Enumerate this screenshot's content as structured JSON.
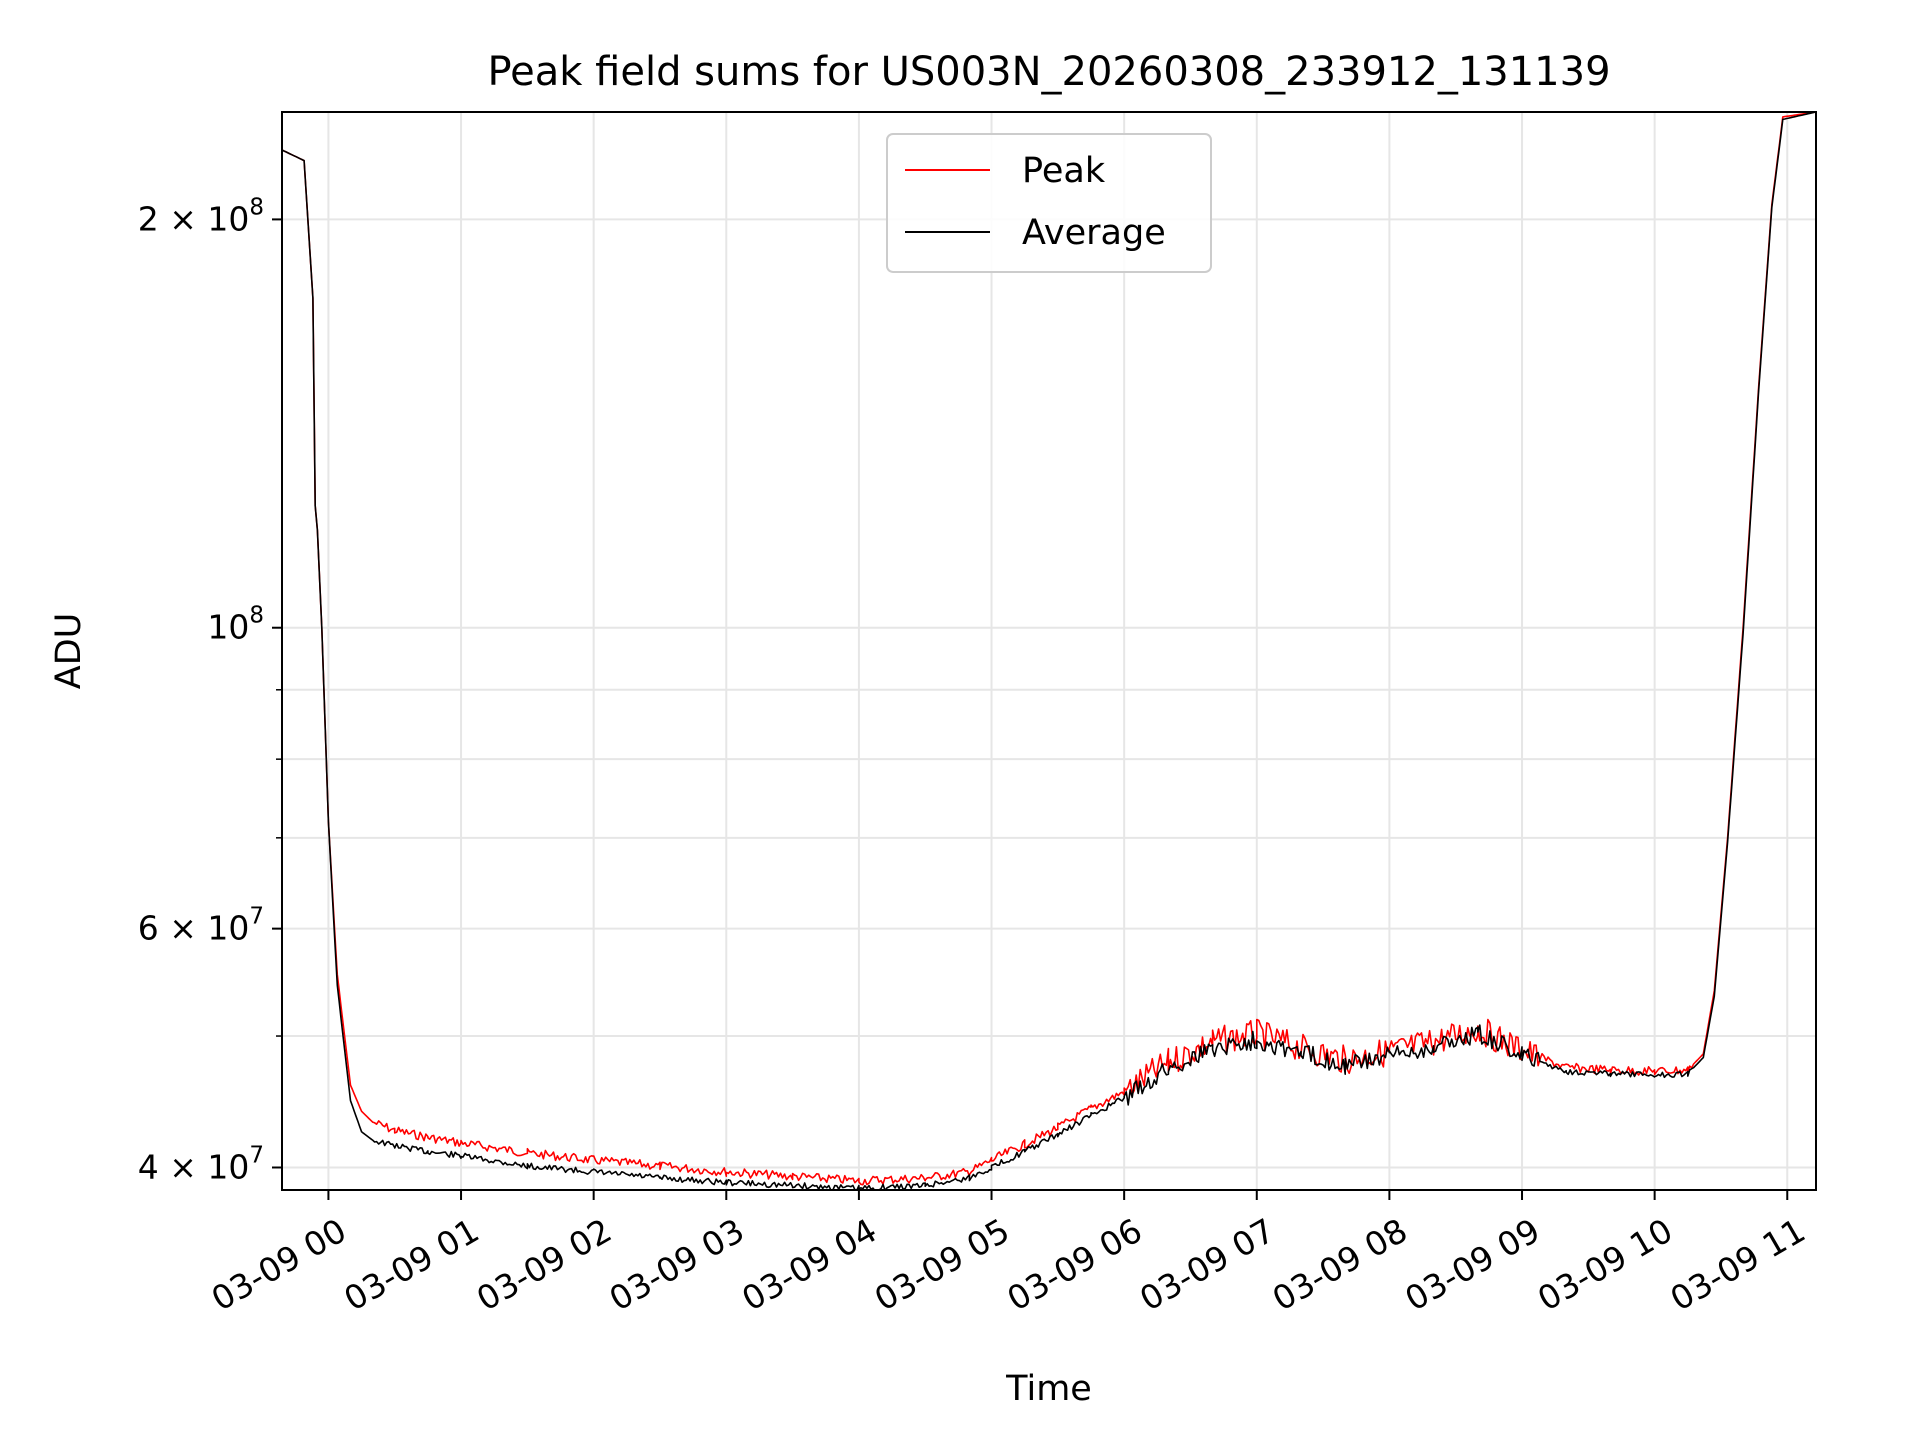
{
  "chart_data": {
    "type": "line",
    "title": "Peak field sums for US003N_20260308_233912_131139",
    "xlabel": "Time",
    "ylabel": "ADU",
    "y_scale": "log",
    "ylim": [
      38500000,
      240000000
    ],
    "xlim": [
      "2026-03-08 23:39",
      "2026-03-09 11:13"
    ],
    "grid": true,
    "legend_position": "upper center",
    "x_ticks": [
      {
        "t": "2026-03-09 00:00",
        "label": "03-09 00"
      },
      {
        "t": "2026-03-09 01:00",
        "label": "03-09 01"
      },
      {
        "t": "2026-03-09 02:00",
        "label": "03-09 02"
      },
      {
        "t": "2026-03-09 03:00",
        "label": "03-09 03"
      },
      {
        "t": "2026-03-09 04:00",
        "label": "03-09 04"
      },
      {
        "t": "2026-03-09 05:00",
        "label": "03-09 05"
      },
      {
        "t": "2026-03-09 06:00",
        "label": "03-09 06"
      },
      {
        "t": "2026-03-09 07:00",
        "label": "03-09 07"
      },
      {
        "t": "2026-03-09 08:00",
        "label": "03-09 08"
      },
      {
        "t": "2026-03-09 09:00",
        "label": "03-09 09"
      },
      {
        "t": "2026-03-09 10:00",
        "label": "03-09 10"
      },
      {
        "t": "2026-03-09 11:00",
        "label": "03-09 11"
      }
    ],
    "y_major_ticks": [
      {
        "v": 40000000,
        "mant": "4",
        "exp": "7"
      },
      {
        "v": 60000000,
        "mant": "6",
        "exp": "7"
      },
      {
        "v": 100000000,
        "mant": "",
        "exp": "8"
      },
      {
        "v": 200000000,
        "mant": "2",
        "exp": "8"
      }
    ],
    "y_minor_gridlines": [
      50000000,
      70000000,
      80000000,
      90000000
    ],
    "series": [
      {
        "name": "Peak",
        "color": "#ff0000",
        "points": [
          [
            "2026-03-08 23:39",
            225000000
          ],
          [
            "2026-03-08 23:49",
            221000000
          ],
          [
            "2026-03-08 23:53",
            175000000
          ],
          [
            "2026-03-08 23:54",
            123000000
          ],
          [
            "2026-03-08 23:55",
            118000000
          ],
          [
            "2026-03-08 23:57",
            100000000
          ],
          [
            "2026-03-09 00:00",
            72000000
          ],
          [
            "2026-03-09 00:04",
            55500000
          ],
          [
            "2026-03-09 00:10",
            46000000
          ],
          [
            "2026-03-09 00:15",
            44000000
          ],
          [
            "2026-03-09 00:20",
            43200000
          ],
          [
            "2026-03-09 00:30",
            42600000
          ],
          [
            "2026-03-09 00:45",
            42100000
          ],
          [
            "2026-03-09 01:00",
            41700000
          ],
          [
            "2026-03-09 01:30",
            41000000
          ],
          [
            "2026-03-09 02:00",
            40500000
          ],
          [
            "2026-03-09 02:30",
            40100000
          ],
          [
            "2026-03-09 03:00",
            39700000
          ],
          [
            "2026-03-09 03:30",
            39400000
          ],
          [
            "2026-03-09 04:00",
            39100000
          ],
          [
            "2026-03-09 04:30",
            39300000
          ],
          [
            "2026-03-09 04:50",
            39700000
          ],
          [
            "2026-03-09 05:00",
            40500000
          ],
          [
            "2026-03-09 05:15",
            41600000
          ],
          [
            "2026-03-09 05:30",
            42800000
          ],
          [
            "2026-03-09 05:45",
            44200000
          ],
          [
            "2026-03-09 06:00",
            45500000
          ],
          [
            "2026-03-09 06:20",
            47800000
          ],
          [
            "2026-03-09 06:40",
            49500000
          ],
          [
            "2026-03-09 07:00",
            50200000
          ],
          [
            "2026-03-09 07:20",
            49000000
          ],
          [
            "2026-03-09 07:40",
            48000000
          ],
          [
            "2026-03-09 08:00",
            48700000
          ],
          [
            "2026-03-09 08:20",
            49500000
          ],
          [
            "2026-03-09 08:40",
            50600000
          ],
          [
            "2026-03-09 09:00",
            48800000
          ],
          [
            "2026-03-09 09:20",
            47400000
          ],
          [
            "2026-03-09 09:40",
            47200000
          ],
          [
            "2026-03-09 10:00",
            47100000
          ],
          [
            "2026-03-09 10:15",
            47200000
          ],
          [
            "2026-03-09 10:22",
            48500000
          ],
          [
            "2026-03-09 10:27",
            54000000
          ],
          [
            "2026-03-09 10:33",
            70000000
          ],
          [
            "2026-03-09 10:40",
            100000000
          ],
          [
            "2026-03-09 10:47",
            150000000
          ],
          [
            "2026-03-09 10:53",
            205000000
          ],
          [
            "2026-03-09 10:58",
            238000000
          ],
          [
            "2026-03-09 11:13",
            240000000
          ]
        ]
      },
      {
        "name": "Average",
        "color": "#000000",
        "points": [
          [
            "2026-03-08 23:39",
            225000000
          ],
          [
            "2026-03-08 23:49",
            221000000
          ],
          [
            "2026-03-08 23:53",
            175000000
          ],
          [
            "2026-03-08 23:54",
            123000000
          ],
          [
            "2026-03-08 23:55",
            118000000
          ],
          [
            "2026-03-08 23:57",
            100000000
          ],
          [
            "2026-03-09 00:00",
            72000000
          ],
          [
            "2026-03-09 00:04",
            54500000
          ],
          [
            "2026-03-09 00:10",
            44800000
          ],
          [
            "2026-03-09 00:15",
            42500000
          ],
          [
            "2026-03-09 00:20",
            41900000
          ],
          [
            "2026-03-09 00:30",
            41500000
          ],
          [
            "2026-03-09 00:45",
            41100000
          ],
          [
            "2026-03-09 01:00",
            40800000
          ],
          [
            "2026-03-09 01:30",
            40100000
          ],
          [
            "2026-03-09 02:00",
            39700000
          ],
          [
            "2026-03-09 02:30",
            39300000
          ],
          [
            "2026-03-09 03:00",
            39000000
          ],
          [
            "2026-03-09 03:30",
            38800000
          ],
          [
            "2026-03-09 04:00",
            38600000
          ],
          [
            "2026-03-09 04:30",
            38800000
          ],
          [
            "2026-03-09 04:50",
            39300000
          ],
          [
            "2026-03-09 05:00",
            40000000
          ],
          [
            "2026-03-09 05:15",
            41100000
          ],
          [
            "2026-03-09 05:30",
            42300000
          ],
          [
            "2026-03-09 05:45",
            43700000
          ],
          [
            "2026-03-09 06:00",
            45000000
          ],
          [
            "2026-03-09 06:20",
            47300000
          ],
          [
            "2026-03-09 06:40",
            49000000
          ],
          [
            "2026-03-09 07:00",
            49700000
          ],
          [
            "2026-03-09 07:20",
            48600000
          ],
          [
            "2026-03-09 07:40",
            47600000
          ],
          [
            "2026-03-09 08:00",
            48300000
          ],
          [
            "2026-03-09 08:20",
            49100000
          ],
          [
            "2026-03-09 08:40",
            50200000
          ],
          [
            "2026-03-09 09:00",
            48400000
          ],
          [
            "2026-03-09 09:20",
            47100000
          ],
          [
            "2026-03-09 09:40",
            46900000
          ],
          [
            "2026-03-09 10:00",
            46800000
          ],
          [
            "2026-03-09 10:15",
            46900000
          ],
          [
            "2026-03-09 10:22",
            48200000
          ],
          [
            "2026-03-09 10:27",
            53500000
          ],
          [
            "2026-03-09 10:33",
            69500000
          ],
          [
            "2026-03-09 10:40",
            99000000
          ],
          [
            "2026-03-09 10:47",
            149000000
          ],
          [
            "2026-03-09 10:53",
            204000000
          ],
          [
            "2026-03-09 10:58",
            237000000
          ],
          [
            "2026-03-09 11:13",
            240000000
          ]
        ]
      }
    ]
  }
}
